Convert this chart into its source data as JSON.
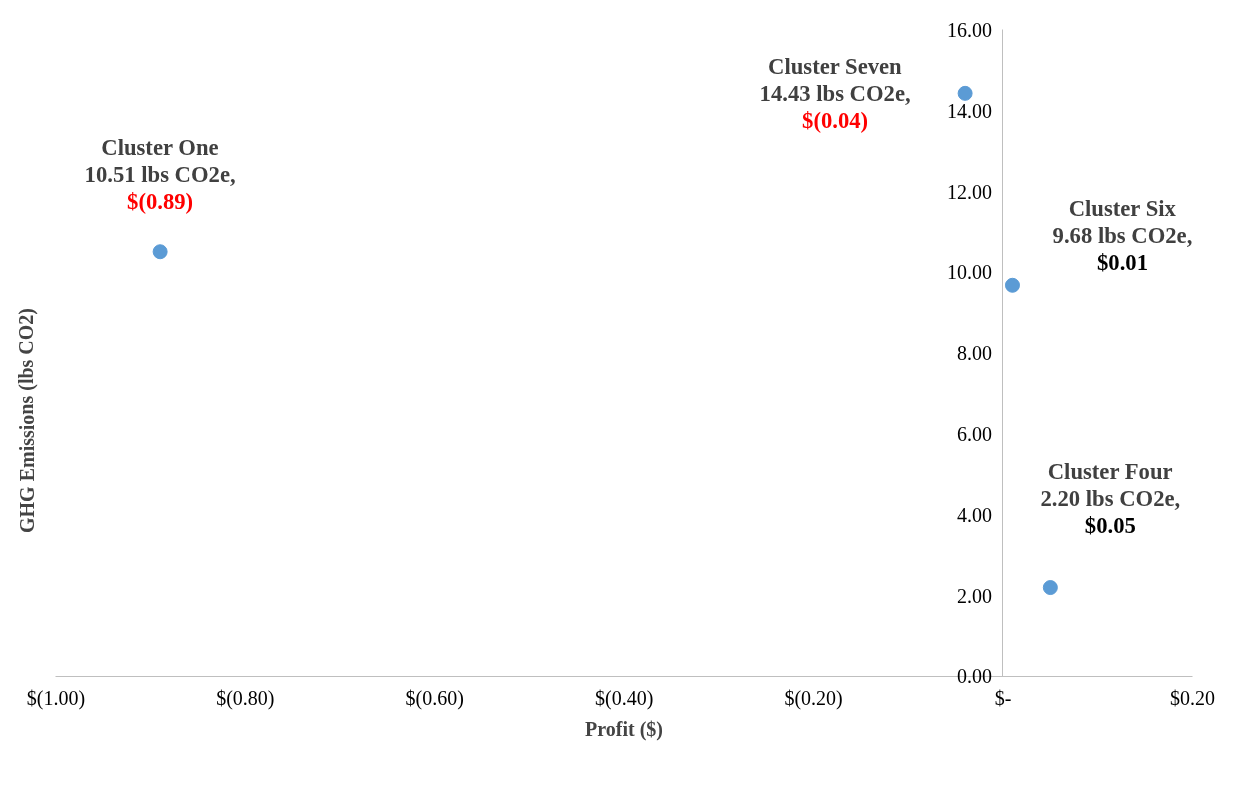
{
  "chart_data": {
    "type": "scatter",
    "xlabel": "Profit ($)",
    "ylabel": "GHG Emissions (lbs CO2)",
    "x": [
      -0.89,
      -0.04,
      0.01,
      0.05
    ],
    "series": [
      {
        "color": "#5b9bd5",
        "values": [
          10.51,
          14.43,
          9.68,
          2.2
        ]
      }
    ],
    "marker": "circle",
    "xlim": [
      -1.0,
      0.2
    ],
    "ylim": [
      0,
      16
    ],
    "xticks": [
      {
        "value": -1.0,
        "label": "$(1.00)"
      },
      {
        "value": -0.8,
        "label": "$(0.80)"
      },
      {
        "value": -0.6,
        "label": "$(0.60)"
      },
      {
        "value": -0.4,
        "label": "$(0.40)"
      },
      {
        "value": -0.2,
        "label": "$(0.20)"
      },
      {
        "value": 0,
        "label": "$-"
      },
      {
        "value": 0.2,
        "label": "$0.20"
      }
    ],
    "yticks": [
      {
        "value": 0,
        "label": "0.00"
      },
      {
        "value": 2,
        "label": "2.00"
      },
      {
        "value": 4,
        "label": "4.00"
      },
      {
        "value": 6,
        "label": "6.00"
      },
      {
        "value": 8,
        "label": "8.00"
      },
      {
        "value": 10,
        "label": "10.00"
      },
      {
        "value": 12,
        "label": "12.00"
      },
      {
        "value": 14,
        "label": "14.00"
      },
      {
        "value": 16,
        "label": "16.00"
      }
    ],
    "annotations": [
      {
        "text": "Cluster One\n10.51 lbs CO2e,\n$(0.89)",
        "x": -0.89,
        "y": 10.51
      },
      {
        "text": "Cluster Seven\n14.43 lbs CO2e,\n$(0.04)",
        "x": -0.04,
        "y": 14.43
      },
      {
        "text": "Cluster Six\n9.68 lbs CO2e,\n$0.01",
        "x": 0.01,
        "y": 9.68
      },
      {
        "text": "Cluster Four\n2.20 lbs CO2e,\n$0.05",
        "x": 0.05,
        "y": 2.2
      }
    ]
  }
}
